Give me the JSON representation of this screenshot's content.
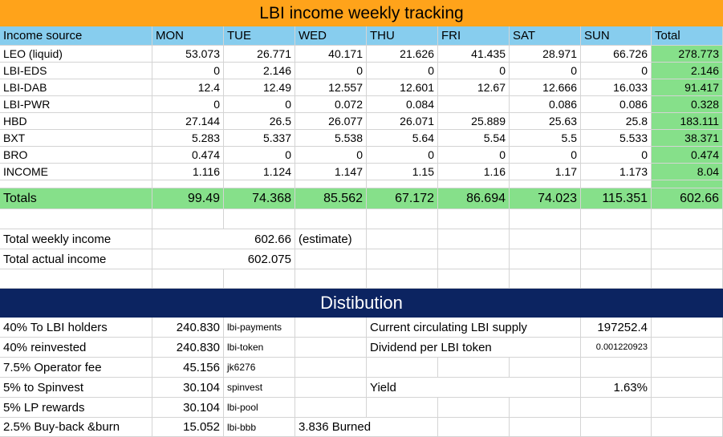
{
  "weekly": {
    "title": "LBI income weekly tracking",
    "headers": [
      "Income source",
      "MON",
      "TUE",
      "WED",
      "THU",
      "FRI",
      "SAT",
      "SUN",
      "Total"
    ],
    "rows": [
      [
        "LEO (liquid)",
        "53.073",
        "26.771",
        "40.171",
        "21.626",
        "41.435",
        "28.971",
        "66.726",
        "278.773"
      ],
      [
        "LBI-EDS",
        "0",
        "2.146",
        "0",
        "0",
        "0",
        "0",
        "0",
        "2.146"
      ],
      [
        "LBI-DAB",
        "12.4",
        "12.49",
        "12.557",
        "12.601",
        "12.67",
        "12.666",
        "16.033",
        "91.417"
      ],
      [
        "LBI-PWR",
        "0",
        "0",
        "0.072",
        "0.084",
        "",
        "0.086",
        "0.086",
        "0.328"
      ],
      [
        "HBD",
        "27.144",
        "26.5",
        "26.077",
        "26.071",
        "25.889",
        "25.63",
        "25.8",
        "183.111"
      ],
      [
        "BXT",
        "5.283",
        "5.337",
        "5.538",
        "5.64",
        "5.54",
        "5.5",
        "5.533",
        "38.371"
      ],
      [
        "BRO",
        "0.474",
        "0",
        "0",
        "0",
        "0",
        "0",
        "0",
        "0.474"
      ],
      [
        "INCOME",
        "1.116",
        "1.124",
        "1.147",
        "1.15",
        "1.16",
        "1.17",
        "1.173",
        "8.04"
      ]
    ],
    "totals": [
      "Totals",
      "99.49",
      "74.368",
      "85.562",
      "67.172",
      "86.694",
      "74.023",
      "115.351",
      "602.66"
    ]
  },
  "summary": {
    "weekly_label": "Total weekly income",
    "weekly_value": "602.66",
    "weekly_note": "(estimate)",
    "actual_label": "Total actual income",
    "actual_value": "602.075"
  },
  "distribution": {
    "title": "Distibution",
    "rows": [
      {
        "label": "40% To LBI holders",
        "value": "240.830",
        "account": "lbi-payments",
        "extra": ""
      },
      {
        "label": "40% reinvested",
        "value": "240.830",
        "account": "lbi-token",
        "extra": ""
      },
      {
        "label": "7.5% Operator fee",
        "value": "45.156",
        "account": "jk6276",
        "extra": ""
      },
      {
        "label": "5% to Spinvest",
        "value": "30.104",
        "account": "spinvest",
        "extra": ""
      },
      {
        "label": "5% LP rewards",
        "value": "30.104",
        "account": "lbi-pool",
        "extra": ""
      },
      {
        "label": "2.5% Buy-back &burn",
        "value": "15.052",
        "account": "lbi-bbb",
        "extra": "3.836 Burned"
      }
    ],
    "supply_label": "Current circulating LBI supply",
    "supply_value": "197252.4",
    "dividend_label": "Dividend per LBI token",
    "dividend_value": "0.001220923",
    "yield_label": "Yield",
    "yield_value": "1.63%"
  },
  "colors": {
    "title_bg": "#ffa31a",
    "header_bg": "#87cdee",
    "totals_bg": "#86e08a",
    "dist_bg": "#0c2461"
  }
}
